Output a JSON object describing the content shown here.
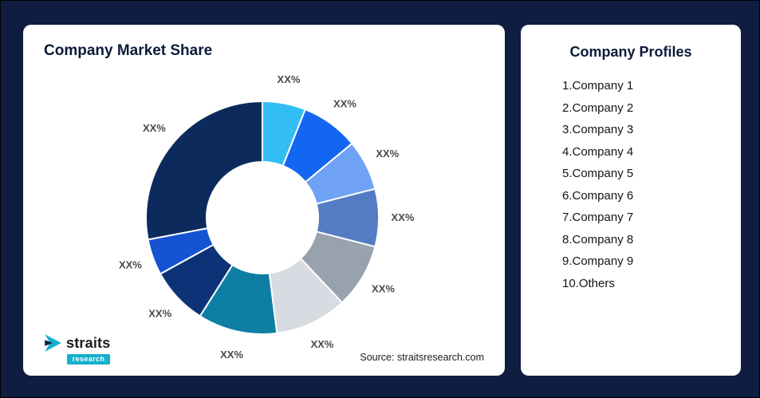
{
  "page": {
    "background": "#0e1d40"
  },
  "left_card": {
    "title": "Company Market Share",
    "source": "Source: straitsresearch.com",
    "logo": {
      "name": "straits",
      "sub": "research",
      "accent_color": "#14b0cf"
    }
  },
  "right_card": {
    "title": "Company Profiles",
    "items": [
      "1.Company 1",
      "2.Company 2",
      "3.Company 3",
      "4.Company 4",
      "5.Company 5",
      "6.Company 6",
      "7.Company 7",
      "8.Company 8",
      "9.Company 9",
      "10.Others"
    ]
  },
  "chart_data": {
    "type": "pie",
    "subtype": "donut",
    "title": "Company Market Share",
    "categories": [
      "Company 1",
      "Company 2",
      "Company 3",
      "Company 4",
      "Company 5",
      "Company 6",
      "Company 7",
      "Company 8",
      "Company 9",
      "Others"
    ],
    "labels": [
      "XX%",
      "XX%",
      "XX%",
      "XX%",
      "XX%",
      "XX%",
      "XX%",
      "XX%",
      "XX%",
      "XX%"
    ],
    "values": [
      6,
      8,
      7,
      8,
      9,
      10,
      11,
      8,
      5,
      28
    ],
    "values_note": "segment sizes estimated from arc angles; on-screen labels are XX% placeholders",
    "colors": [
      "#33bdf5",
      "#1266f1",
      "#6fa1f4",
      "#537cc4",
      "#98a2ae",
      "#d8dce2",
      "#0d7fa3",
      "#0d3277",
      "#1553d3",
      "#0d2a5c"
    ],
    "start_angle_deg": -90,
    "direction": "clockwise",
    "legend": "none",
    "source": "Source: straitsresearch.com"
  }
}
